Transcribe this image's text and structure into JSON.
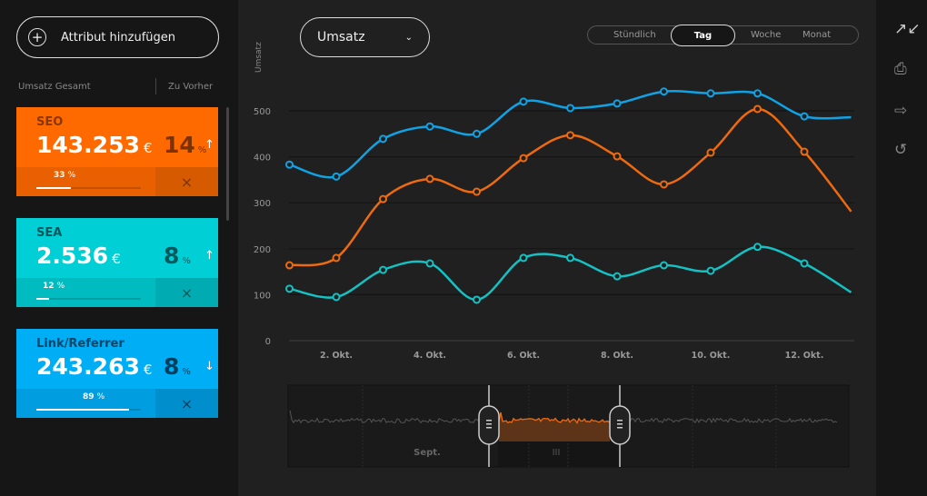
{
  "sidebar": {
    "add_label": "Attribut hinzufügen",
    "col_total": "Umsatz Gesamt",
    "col_prev": "Zu Vorher",
    "cards": [
      {
        "name": "SEO",
        "value": "143.253",
        "currency": "€",
        "change": "14",
        "change_unit": "%",
        "trend": "↑",
        "share": "33",
        "share_unit": "%",
        "share_fraction": 0.33,
        "color": "#ff6a00",
        "bot_color": "#e86000",
        "close_color": "#d55a00",
        "name_color": "#8a3600",
        "pct_color": "#7a3200"
      },
      {
        "name": "SEA",
        "value": "2.536",
        "currency": "€",
        "change": "8",
        "change_unit": "%",
        "trend": "↑",
        "share": "12",
        "share_unit": "%",
        "share_fraction": 0.12,
        "color": "#00d0d6",
        "bot_color": "#00bcc1",
        "close_color": "#00acb1",
        "name_color": "#00585b",
        "pct_color": "#005a5d"
      },
      {
        "name": "Link/Referrer",
        "value": "243.263",
        "currency": "€",
        "change": "8",
        "change_unit": "%",
        "trend": "↓",
        "share": "89",
        "share_unit": "%",
        "share_fraction": 0.89,
        "color": "#00aef5",
        "bot_color": "#009ee0",
        "close_color": "#008fcc",
        "name_color": "#00466a",
        "pct_color": "#00405f"
      }
    ],
    "close_icon": "×"
  },
  "header": {
    "metric": "Umsatz",
    "ranges": [
      "Stündlich",
      "Tag",
      "Woche",
      "Monat"
    ],
    "active_range": "Tag"
  },
  "chart_data": {
    "type": "line",
    "ylabel": "Umsatz",
    "ylim": [
      0,
      500
    ],
    "yticks": [
      "0",
      "100",
      "200",
      "300",
      "400",
      "500"
    ],
    "x": [
      1,
      2,
      3,
      4,
      5,
      6,
      7,
      8,
      9,
      10,
      11,
      12,
      13
    ],
    "xticks": [
      "2. Okt.",
      "4. Okt.",
      "6. Okt.",
      "8. Okt.",
      "10. Okt.",
      "12. Okt."
    ],
    "series": [
      {
        "color": "#0fa3e6",
        "values": [
          383,
          357,
          439,
          466,
          450,
          520,
          506,
          516,
          542,
          538,
          538,
          488,
          486
        ]
      },
      {
        "color": "#ee6a10",
        "values": [
          164,
          180,
          308,
          352,
          324,
          397,
          447,
          401,
          340,
          409,
          504,
          411,
          281
        ]
      },
      {
        "color": "#14c2c4",
        "values": [
          113,
          95,
          154,
          168,
          89,
          180,
          180,
          140,
          164,
          152,
          204,
          168,
          105
        ]
      }
    ]
  },
  "navigator": {
    "label": "Sept.",
    "grip": "III"
  },
  "toolbar": {
    "icons": [
      "collapse-icon",
      "print-icon",
      "export-icon",
      "reset-icon"
    ]
  }
}
